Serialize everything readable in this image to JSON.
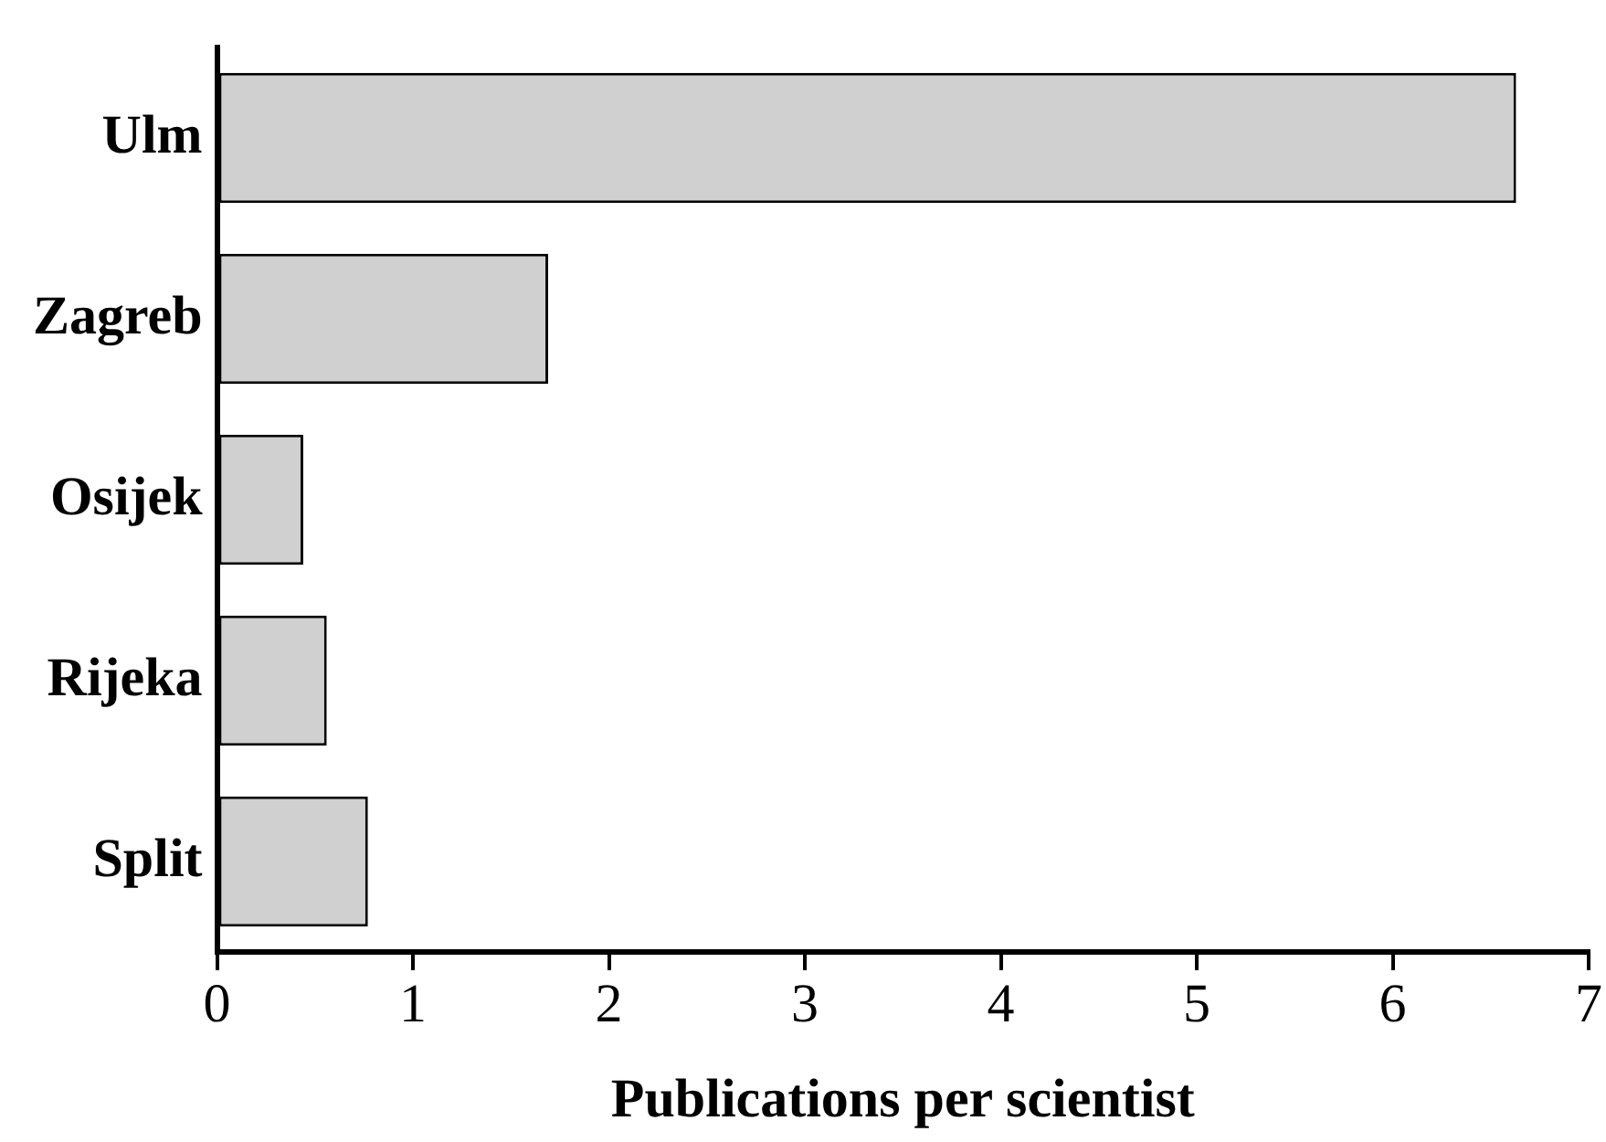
{
  "chart_data": {
    "type": "bar",
    "orientation": "horizontal",
    "xlabel": "Publications per scientist",
    "categories": [
      "Ulm",
      "Zagreb",
      "Osijek",
      "Rijeka",
      "Split"
    ],
    "values": [
      6.63,
      1.69,
      0.44,
      0.56,
      0.77
    ],
    "color": "#d0d0d0",
    "xlim": [
      0,
      7
    ],
    "xticks": [
      0,
      1,
      2,
      3,
      4,
      5,
      6,
      7
    ],
    "grid": false,
    "legend": false
  }
}
